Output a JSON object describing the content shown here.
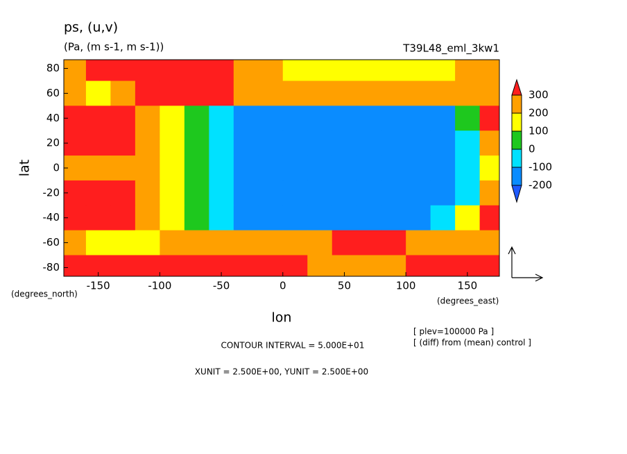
{
  "chart_data": {
    "type": "contour",
    "title": "ps, (u,v)",
    "subtitle": "(Pa, (m s-1, m s-1))",
    "experiment": "T39L48_eml_3kw1",
    "xlabel": "lon",
    "ylabel": "lat",
    "xunits": "(degrees_east)",
    "yunits": "(degrees_north)",
    "notes": [
      "CONTOUR INTERVAL = 5.000E+01",
      "XUNIT = 2.500E+00, YUNIT = 2.500E+00"
    ],
    "annotations": [
      "[ plev=100000 Pa ]",
      "[ (diff) from (mean) control ]"
    ],
    "xlim": [
      -178,
      176
    ],
    "ylim": [
      -87,
      87
    ],
    "xticks": [
      -150,
      -100,
      -50,
      0,
      50,
      100,
      150
    ],
    "yticks": [
      -80,
      -60,
      -40,
      -20,
      0,
      20,
      40,
      60,
      80
    ],
    "lon": [
      -170,
      -150,
      -130,
      -110,
      -90,
      -70,
      -50,
      -30,
      -10,
      10,
      30,
      50,
      70,
      90,
      110,
      130,
      150,
      170
    ],
    "lat": [
      80,
      60,
      40,
      20,
      0,
      -20,
      -40,
      -60,
      -80
    ],
    "z": [
      [
        250,
        350,
        350,
        400,
        400,
        350,
        300,
        250,
        200,
        150,
        150,
        150,
        150,
        150,
        150,
        150,
        200,
        250
      ],
      [
        250,
        150,
        250,
        300,
        350,
        350,
        300,
        250,
        250,
        250,
        250,
        250,
        250,
        250,
        250,
        250,
        200,
        250
      ],
      [
        350,
        350,
        350,
        250,
        150,
        50,
        -50,
        -150,
        -150,
        -150,
        -150,
        -150,
        -150,
        -150,
        -150,
        -150,
        50,
        350
      ],
      [
        350,
        350,
        300,
        250,
        150,
        50,
        -50,
        -150,
        -150,
        -150,
        -150,
        -150,
        -150,
        -150,
        -150,
        -150,
        -50,
        250
      ],
      [
        250,
        250,
        250,
        250,
        150,
        50,
        -50,
        -150,
        -150,
        -150,
        -150,
        -150,
        -150,
        -150,
        -150,
        -150,
        -50,
        150
      ],
      [
        350,
        350,
        300,
        250,
        150,
        50,
        -50,
        -150,
        -150,
        -150,
        -150,
        -150,
        -150,
        -150,
        -150,
        -150,
        -50,
        250
      ],
      [
        350,
        350,
        350,
        250,
        150,
        50,
        -50,
        -150,
        -150,
        -150,
        -150,
        -150,
        -150,
        -150,
        -150,
        -50,
        150,
        350
      ],
      [
        250,
        150,
        150,
        150,
        250,
        250,
        250,
        250,
        250,
        250,
        250,
        350,
        350,
        350,
        250,
        250,
        250,
        250
      ],
      [
        400,
        400,
        400,
        400,
        400,
        400,
        400,
        400,
        400,
        350,
        250,
        250,
        250,
        250,
        350,
        400,
        350,
        400
      ]
    ],
    "levels": [
      -200,
      -100,
      0,
      100,
      200,
      300
    ],
    "colors": [
      "#1e5aff",
      "#0a8cff",
      "#00e1ff",
      "#1ec81e",
      "#ffff00",
      "#ffa000",
      "#ff1e1e"
    ]
  }
}
